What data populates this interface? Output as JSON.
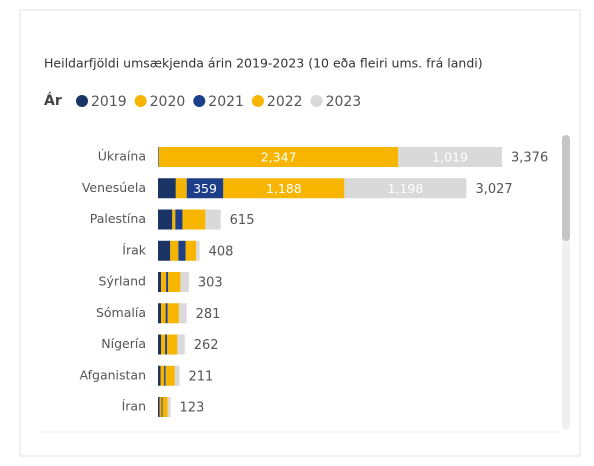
{
  "chart_data": {
    "type": "bar",
    "orientation": "horizontal",
    "stacked": true,
    "title": "Heildarfjöldi umsækjenda árin 2019-2023 (10 eða fleiri ums. frá landi)",
    "legend_title": "Ár",
    "categories": [
      "Úkraína",
      "Venesúela",
      "Palestína",
      "Írak",
      "Sýrland",
      "Sómalía",
      "Nígería",
      "Afganistan",
      "Íran"
    ],
    "series": [
      {
        "name": "2019",
        "color": "#1b3466",
        "values": [
          3,
          175,
          140,
          120,
          30,
          30,
          30,
          25,
          15
        ],
        "value_labels": [
          null,
          null,
          null,
          null,
          null,
          null,
          null,
          null,
          null
        ]
      },
      {
        "name": "2020",
        "color": "#f5b400",
        "values": [
          3,
          107,
          30,
          80,
          50,
          45,
          40,
          35,
          20
        ],
        "value_labels": [
          null,
          null,
          null,
          null,
          null,
          null,
          null,
          null,
          null
        ]
      },
      {
        "name": "2021",
        "color": "#1d3f8a",
        "values": [
          4,
          359,
          70,
          70,
          20,
          20,
          20,
          15,
          10
        ],
        "value_labels": [
          null,
          "359",
          null,
          null,
          null,
          null,
          null,
          null,
          null
        ]
      },
      {
        "name": "2022",
        "color": "#f7b500",
        "values": [
          2347,
          1188,
          225,
          105,
          120,
          110,
          100,
          90,
          50
        ],
        "value_labels": [
          "2,347",
          "1,188",
          null,
          null,
          null,
          null,
          null,
          null,
          null
        ]
      },
      {
        "name": "2023",
        "color": "#d9d9d9",
        "values": [
          1019,
          1198,
          150,
          33,
          83,
          76,
          72,
          46,
          28
        ],
        "value_labels": [
          "1,019",
          "1,198",
          null,
          null,
          null,
          null,
          null,
          null,
          null
        ]
      }
    ],
    "totals": [
      3376,
      3027,
      615,
      408,
      303,
      281,
      262,
      211,
      123
    ],
    "total_labels": [
      "3,376",
      "3,027",
      "615",
      "408",
      "303",
      "281",
      "262",
      "211",
      "123"
    ],
    "xlim": [
      0,
      3376
    ]
  }
}
